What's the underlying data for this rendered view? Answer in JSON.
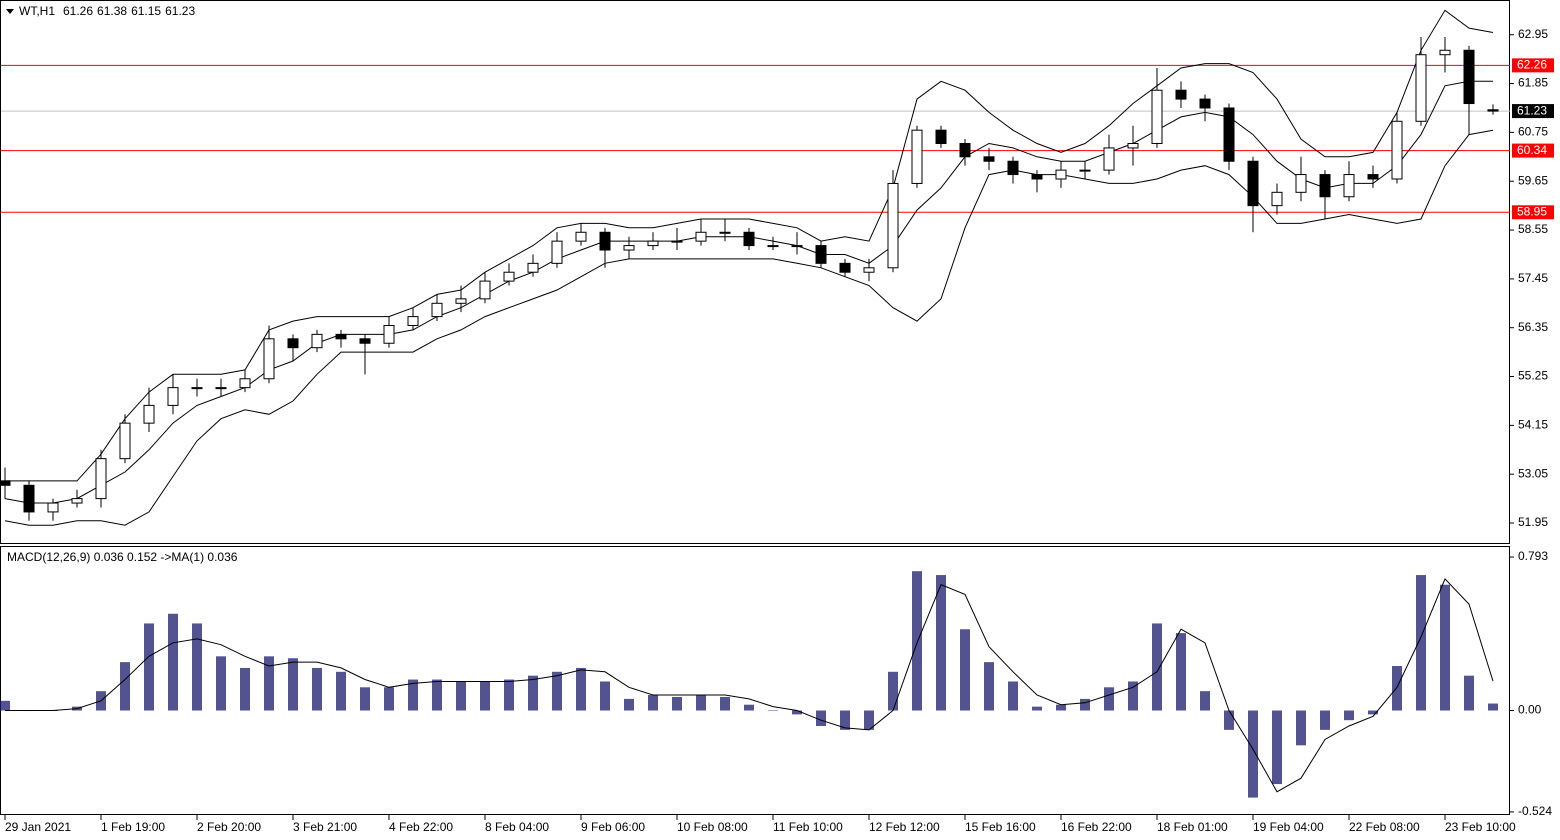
{
  "chart_data": [
    {
      "type": "candlestick",
      "title": "WT,H1",
      "header_values": [
        61.26,
        61.38,
        61.15,
        61.23
      ],
      "categories": [
        "29 Jan 2021",
        null,
        null,
        null,
        "1 Feb 19:00",
        null,
        null,
        null,
        "2 Feb 20:00",
        null,
        null,
        null,
        "3 Feb 21:00",
        null,
        null,
        null,
        "4 Feb 22:00",
        null,
        null,
        null,
        "8 Feb 04:00",
        null,
        null,
        null,
        "9 Feb 06:00",
        null,
        null,
        null,
        "10 Feb 08:00",
        null,
        null,
        null,
        "11 Feb 10:00",
        null,
        null,
        null,
        "12 Feb 12:00",
        null,
        null,
        null,
        "15 Feb 16:00",
        null,
        null,
        null,
        "16 Feb 22:00",
        null,
        null,
        null,
        "18 Feb 01:00",
        null,
        null,
        null,
        "19 Feb 04:00",
        null,
        null,
        null,
        "22 Feb 08:00",
        null,
        null,
        null,
        "23 Feb 10:00",
        null,
        null
      ],
      "open": [
        52.9,
        52.8,
        52.2,
        52.4,
        52.5,
        53.4,
        54.2,
        54.6,
        55.0,
        55.0,
        55.0,
        55.2,
        56.1,
        55.9,
        56.2,
        56.1,
        56.0,
        56.4,
        56.6,
        56.9,
        57.0,
        57.4,
        57.6,
        57.8,
        58.3,
        58.5,
        58.1,
        58.2,
        58.3,
        58.3,
        58.5,
        58.5,
        58.2,
        58.2,
        58.2,
        57.8,
        57.6,
        57.7,
        59.6,
        60.8,
        60.5,
        60.2,
        60.1,
        59.8,
        59.7,
        59.9,
        59.9,
        60.4,
        60.5,
        61.7,
        61.5,
        61.3,
        60.1,
        59.1,
        59.4,
        59.8,
        59.3,
        59.8,
        59.7,
        61.0,
        62.5,
        62.6,
        61.26
      ],
      "high": [
        53.2,
        52.9,
        52.5,
        52.7,
        53.6,
        54.4,
        55.0,
        55.3,
        55.2,
        55.2,
        55.4,
        56.4,
        56.2,
        56.3,
        56.3,
        56.2,
        56.6,
        56.8,
        57.1,
        57.3,
        57.6,
        57.8,
        58.0,
        58.5,
        58.7,
        58.6,
        58.4,
        58.5,
        58.6,
        58.8,
        58.8,
        58.6,
        58.4,
        58.5,
        58.3,
        57.9,
        57.9,
        59.9,
        60.9,
        60.9,
        60.6,
        60.4,
        60.2,
        59.9,
        60.1,
        60.1,
        60.7,
        60.9,
        62.2,
        61.9,
        61.6,
        61.4,
        60.2,
        59.6,
        60.2,
        59.9,
        60.1,
        60.0,
        61.2,
        62.9,
        62.9,
        62.7,
        61.38
      ],
      "low": [
        52.5,
        52.0,
        52.0,
        52.3,
        52.3,
        53.3,
        54.0,
        54.4,
        54.8,
        54.8,
        54.9,
        55.1,
        55.6,
        55.8,
        55.9,
        55.3,
        55.9,
        56.3,
        56.5,
        56.7,
        56.9,
        57.3,
        57.5,
        57.7,
        58.2,
        57.7,
        57.9,
        58.1,
        58.1,
        58.2,
        58.3,
        58.1,
        58.1,
        58.0,
        57.7,
        57.5,
        57.4,
        57.6,
        59.5,
        60.4,
        60.0,
        59.9,
        59.6,
        59.4,
        59.5,
        59.7,
        59.8,
        60.0,
        60.4,
        61.3,
        61.0,
        59.9,
        58.5,
        58.9,
        59.2,
        58.8,
        59.2,
        59.5,
        59.6,
        60.9,
        62.1,
        60.7,
        61.15
      ],
      "close": [
        52.8,
        52.2,
        52.4,
        52.5,
        53.4,
        54.2,
        54.6,
        55.0,
        55.0,
        55.0,
        55.2,
        56.1,
        55.9,
        56.2,
        56.1,
        56.0,
        56.4,
        56.6,
        56.9,
        57.0,
        57.4,
        57.6,
        57.8,
        58.3,
        58.5,
        58.1,
        58.2,
        58.3,
        58.3,
        58.5,
        58.5,
        58.2,
        58.2,
        58.2,
        57.8,
        57.6,
        57.7,
        59.6,
        60.8,
        60.5,
        60.2,
        60.1,
        59.8,
        59.7,
        59.9,
        59.9,
        60.4,
        60.5,
        61.7,
        61.5,
        61.3,
        60.1,
        59.1,
        59.4,
        59.8,
        59.3,
        59.8,
        59.7,
        61.0,
        62.5,
        62.6,
        61.4,
        61.23
      ],
      "upper": [
        52.9,
        52.9,
        52.9,
        52.9,
        53.5,
        54.3,
        54.9,
        55.3,
        55.3,
        55.3,
        55.4,
        56.3,
        56.5,
        56.6,
        56.6,
        56.6,
        56.6,
        56.8,
        57.1,
        57.2,
        57.6,
        57.9,
        58.2,
        58.6,
        58.7,
        58.7,
        58.6,
        58.6,
        58.7,
        58.8,
        58.8,
        58.8,
        58.7,
        58.6,
        58.3,
        58.4,
        58.3,
        59.5,
        61.5,
        61.9,
        61.7,
        61.2,
        60.8,
        60.5,
        60.3,
        60.5,
        60.9,
        61.4,
        61.8,
        62.2,
        62.3,
        62.3,
        62.1,
        61.5,
        60.6,
        60.2,
        60.2,
        60.3,
        61.2,
        62.6,
        63.5,
        63.1,
        63.0
      ],
      "middle": [
        52.5,
        52.4,
        52.4,
        52.5,
        52.8,
        53.1,
        53.6,
        54.2,
        54.6,
        54.8,
        55.0,
        55.4,
        55.6,
        56.0,
        56.2,
        56.2,
        56.2,
        56.3,
        56.6,
        56.8,
        57.1,
        57.4,
        57.6,
        57.9,
        58.1,
        58.3,
        58.3,
        58.3,
        58.3,
        58.4,
        58.4,
        58.4,
        58.3,
        58.2,
        58.0,
        58.0,
        57.8,
        58.2,
        59.0,
        59.5,
        60.2,
        60.5,
        60.4,
        60.2,
        60.1,
        60.1,
        60.3,
        60.5,
        60.8,
        61.1,
        61.2,
        61.1,
        60.7,
        60.1,
        59.7,
        59.5,
        59.6,
        59.6,
        60.0,
        60.7,
        61.8,
        61.9,
        61.9
      ],
      "lower": [
        52.0,
        51.9,
        51.9,
        52.0,
        52.0,
        51.9,
        52.2,
        53.0,
        53.8,
        54.3,
        54.5,
        54.4,
        54.7,
        55.3,
        55.8,
        55.8,
        55.8,
        55.8,
        56.1,
        56.3,
        56.6,
        56.8,
        57.0,
        57.2,
        57.5,
        57.8,
        57.9,
        57.9,
        57.9,
        57.9,
        57.9,
        57.9,
        57.9,
        57.8,
        57.7,
        57.5,
        57.3,
        56.8,
        56.5,
        57.0,
        58.6,
        59.8,
        59.9,
        59.8,
        59.8,
        59.7,
        59.6,
        59.6,
        59.7,
        59.9,
        60.0,
        59.8,
        59.3,
        58.7,
        58.7,
        58.8,
        58.9,
        58.8,
        58.7,
        58.8,
        60.0,
        60.7,
        60.8
      ],
      "hlines": [
        {
          "value": 62.26,
          "color": "#ff0000"
        },
        {
          "value": 60.34,
          "color": "#ff0000"
        },
        {
          "value": 58.95,
          "color": "#ff0000"
        },
        {
          "value": 61.23,
          "color": "#000000"
        }
      ],
      "ylim": [
        51.5,
        63.71
      ],
      "yticks": [
        62.95,
        61.85,
        60.75,
        59.65,
        58.55,
        57.45,
        56.35,
        55.25,
        54.15,
        53.05,
        51.95
      ]
    },
    {
      "type": "macd",
      "title": "MACD(12,26,9) 0.036 0.152  ->MA(1) 0.036",
      "histogram": [
        0.05,
        0.0,
        0.0,
        0.02,
        0.1,
        0.25,
        0.45,
        0.5,
        0.45,
        0.28,
        0.22,
        0.28,
        0.27,
        0.22,
        0.2,
        0.12,
        0.12,
        0.16,
        0.16,
        0.15,
        0.15,
        0.16,
        0.18,
        0.2,
        0.22,
        0.15,
        0.06,
        0.08,
        0.07,
        0.08,
        0.07,
        0.03,
        0.0,
        -0.02,
        -0.08,
        -0.1,
        -0.1,
        0.2,
        0.72,
        0.7,
        0.42,
        0.25,
        0.15,
        0.02,
        0.03,
        0.06,
        0.12,
        0.15,
        0.45,
        0.4,
        0.1,
        -0.1,
        -0.45,
        -0.38,
        -0.18,
        -0.1,
        -0.05,
        -0.02,
        0.23,
        0.7,
        0.65,
        0.18,
        0.036
      ],
      "signal": [
        0.0,
        0.0,
        0.0,
        0.01,
        0.05,
        0.16,
        0.28,
        0.35,
        0.37,
        0.34,
        0.28,
        0.23,
        0.25,
        0.25,
        0.22,
        0.16,
        0.12,
        0.14,
        0.15,
        0.15,
        0.15,
        0.15,
        0.16,
        0.18,
        0.21,
        0.2,
        0.12,
        0.08,
        0.08,
        0.08,
        0.08,
        0.06,
        0.02,
        0.0,
        -0.05,
        -0.09,
        -0.1,
        0.0,
        0.35,
        0.65,
        0.6,
        0.33,
        0.2,
        0.08,
        0.03,
        0.04,
        0.08,
        0.12,
        0.2,
        0.42,
        0.35,
        0.0,
        -0.2,
        -0.42,
        -0.35,
        -0.15,
        -0.08,
        -0.03,
        0.12,
        0.38,
        0.68,
        0.55,
        0.152
      ],
      "ylim": [
        -0.54,
        0.845
      ],
      "yticks": [
        0.793,
        {
          "value": 0,
          "label": "0.00"
        },
        -0.524
      ]
    }
  ]
}
